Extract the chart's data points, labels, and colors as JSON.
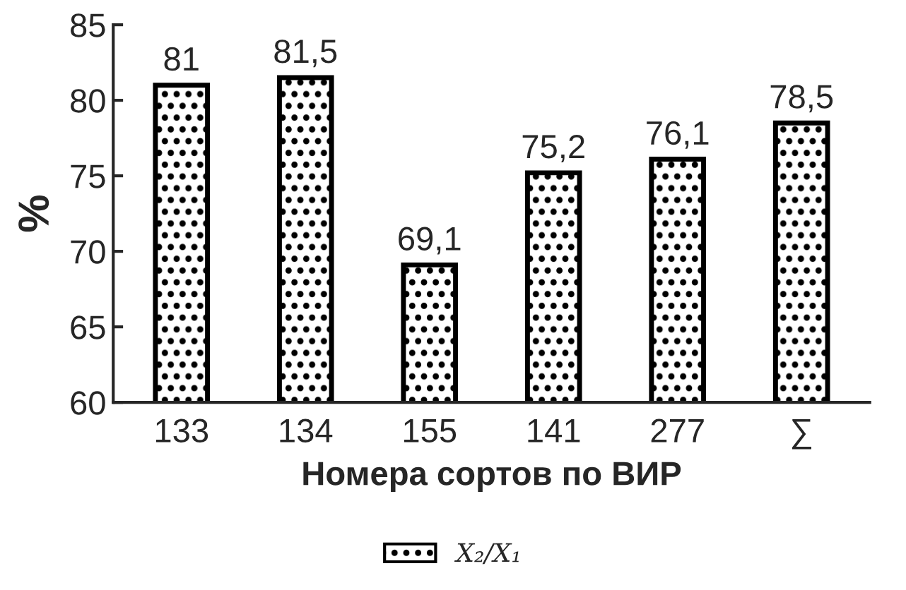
{
  "chart_data": {
    "type": "bar",
    "xlabel": "Номера сортов по ВИР",
    "ylabel": "%",
    "categories": [
      "133",
      "134",
      "155",
      "141",
      "277",
      "∑"
    ],
    "series": [
      {
        "name": "X₂/X₁",
        "color": "#000000",
        "values": [
          81,
          81.5,
          69.1,
          75.2,
          76.1,
          78.5
        ],
        "value_labels": [
          "81",
          "81,5",
          "69,1",
          "75,2",
          "76,1",
          "78,5"
        ]
      }
    ],
    "ylim": [
      60,
      85
    ],
    "yticks": [
      60,
      65,
      70,
      75,
      80,
      85
    ],
    "grid": false,
    "legend": "bottom"
  }
}
